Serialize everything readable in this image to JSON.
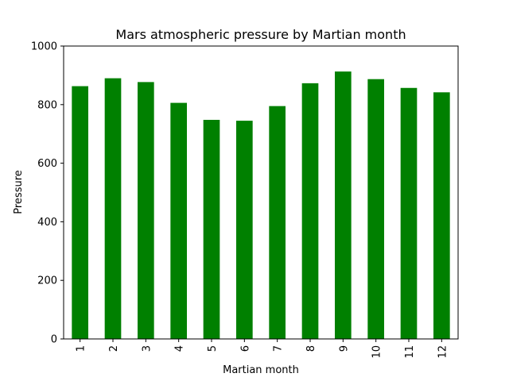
{
  "chart_data": {
    "type": "bar",
    "title": "Mars atmospheric pressure by Martian month",
    "xlabel": "Martian month",
    "ylabel": "Pressure",
    "categories": [
      "1",
      "2",
      "3",
      "4",
      "5",
      "6",
      "7",
      "8",
      "9",
      "10",
      "11",
      "12"
    ],
    "values": [
      863,
      890,
      877,
      806,
      748,
      745,
      795,
      873,
      913,
      887,
      857,
      842
    ],
    "ylim": [
      0,
      1000
    ],
    "yticks": [
      0,
      200,
      400,
      600,
      800,
      1000
    ],
    "bar_color": "#008000",
    "grid": false,
    "legend": "none"
  }
}
